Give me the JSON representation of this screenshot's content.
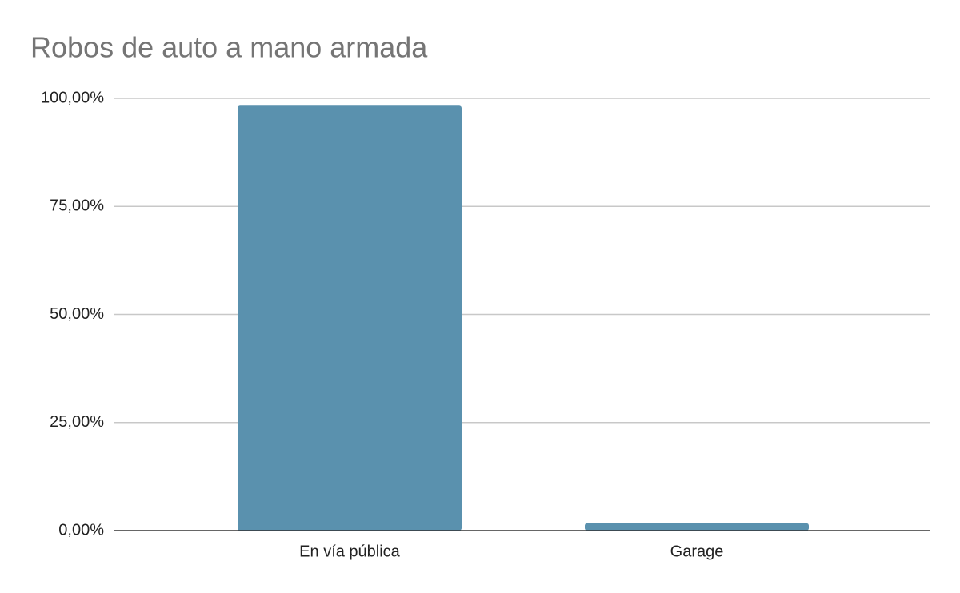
{
  "chart_data": {
    "type": "bar",
    "title": "Robos de auto a mano armada",
    "categories": [
      "En vía pública",
      "Garage"
    ],
    "values": [
      98.3,
      1.7
    ],
    "color": "#5a91ae",
    "ylim": [
      0,
      100
    ],
    "yticks": [
      {
        "value": 0,
        "label": "0,00%"
      },
      {
        "value": 25,
        "label": "25,00%"
      },
      {
        "value": 50,
        "label": "50,00%"
      },
      {
        "value": 75,
        "label": "75,00%"
      },
      {
        "value": 100,
        "label": "100,00%"
      }
    ],
    "grid": true
  }
}
